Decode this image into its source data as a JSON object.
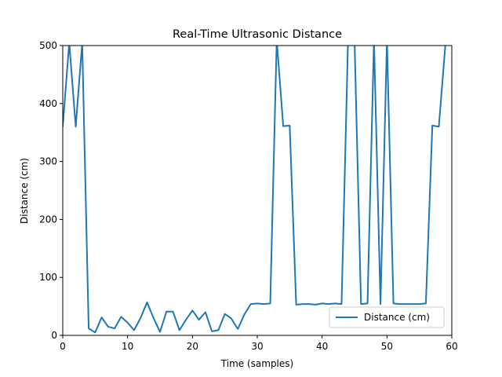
{
  "chart_data": {
    "type": "line",
    "title": "Real-Time Ultrasonic Distance",
    "xlabel": "Time (samples)",
    "ylabel": "Distance (cm)",
    "xlim": [
      0,
      60
    ],
    "ylim": [
      0,
      500
    ],
    "xticks": [
      0,
      10,
      20,
      30,
      40,
      50,
      60
    ],
    "yticks": [
      0,
      100,
      200,
      300,
      400,
      500
    ],
    "grid": false,
    "legend_position": "lower-right",
    "series": [
      {
        "name": "Distance (cm)",
        "color": "#1f77b4",
        "x": [
          0,
          1,
          2,
          3,
          4,
          5,
          6,
          7,
          8,
          9,
          10,
          11,
          12,
          13,
          14,
          15,
          16,
          17,
          18,
          19,
          20,
          21,
          22,
          23,
          24,
          25,
          26,
          27,
          28,
          29,
          30,
          31,
          32,
          33,
          34,
          35,
          36,
          37,
          38,
          39,
          40,
          41,
          42,
          43,
          44,
          45,
          46,
          47,
          48,
          49,
          50,
          51,
          52,
          53,
          54,
          55,
          56,
          57,
          58,
          59
        ],
        "values": [
          360,
          505,
          360,
          505,
          12,
          5,
          31,
          15,
          12,
          32,
          22,
          9,
          30,
          57,
          30,
          6,
          41,
          41,
          9,
          27,
          43,
          27,
          40,
          7,
          9,
          37,
          29,
          11,
          36,
          54,
          55,
          54,
          55,
          510,
          361,
          362,
          53,
          54,
          54,
          53,
          55,
          54,
          55,
          54,
          510,
          510,
          54,
          55,
          510,
          54,
          510,
          55,
          54,
          54,
          54,
          54,
          55,
          362,
          360,
          500
        ]
      }
    ]
  }
}
